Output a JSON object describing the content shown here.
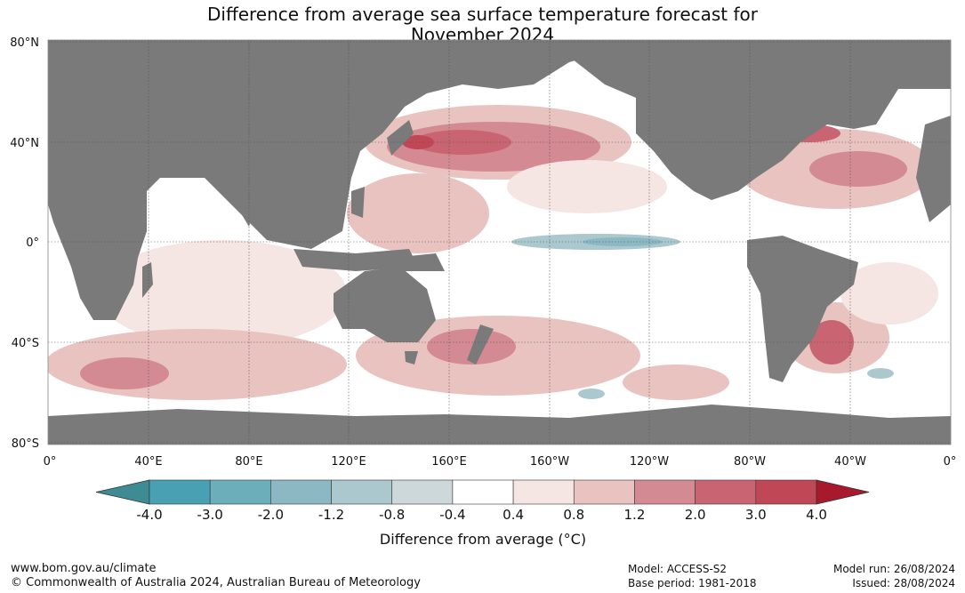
{
  "title": {
    "line1": "Difference from average sea surface temperature forecast for",
    "line2": "November 2024"
  },
  "map": {
    "lat_labels": [
      "80°N",
      "40°N",
      "0°",
      "40°S",
      "80°S"
    ],
    "lon_labels": [
      "0°",
      "40°E",
      "80°E",
      "120°E",
      "160°E",
      "160°W",
      "120°W",
      "80°W",
      "40°W",
      "0°"
    ],
    "colors": {
      "land": "#7a7a7a",
      "ocean_neutral": "#ffffff",
      "grid": "#555555"
    }
  },
  "colorbar": {
    "ticks": [
      "-4.0",
      "-3.0",
      "-2.0",
      "-1.2",
      "-0.8",
      "-0.4",
      "0.4",
      "0.8",
      "1.2",
      "2.0",
      "3.0",
      "4.0"
    ],
    "colors": [
      "#3f8b93",
      "#4aa0b3",
      "#6daebb",
      "#8cb8c4",
      "#abc8ce",
      "#ccd8da",
      "#ffffff",
      "#f5e5e3",
      "#e8c3bf",
      "#d48a92",
      "#c96572",
      "#c04755",
      "#a8192e"
    ],
    "label": "Difference from average (°C)"
  },
  "footer": {
    "url": "www.bom.gov.au/climate",
    "copyright": "© Commonwealth of Australia 2024, Australian Bureau of Meteorology",
    "model": "Model: ACCESS-S2",
    "base_period": "Base period: 1981-2018",
    "model_run": "Model run: 26/08/2024",
    "issued": "Issued: 28/08/2024"
  }
}
